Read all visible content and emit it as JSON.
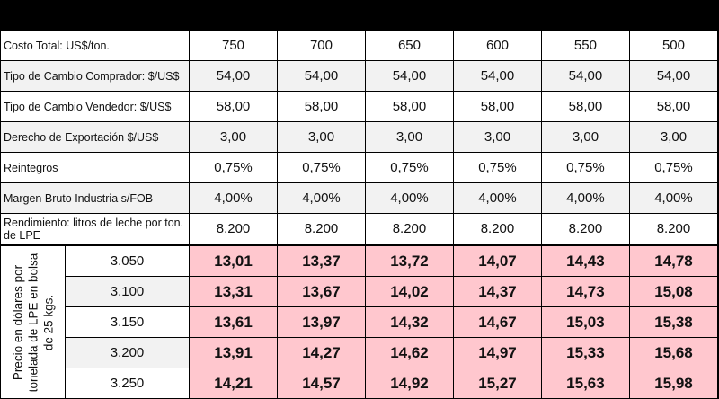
{
  "columns": [
    "750",
    "700",
    "650",
    "600",
    "550",
    "500"
  ],
  "params": [
    {
      "label": "Costo Total: US$/ton.",
      "values": [
        "750",
        "700",
        "650",
        "600",
        "550",
        "500"
      ]
    },
    {
      "label": "Tipo de Cambio Comprador: $/US$",
      "values": [
        "54,00",
        "54,00",
        "54,00",
        "54,00",
        "54,00",
        "54,00"
      ]
    },
    {
      "label": "Tipo de Cambio Vendedor: $/US$",
      "values": [
        "58,00",
        "58,00",
        "58,00",
        "58,00",
        "58,00",
        "58,00"
      ]
    },
    {
      "label": "Derecho de Exportación $/US$",
      "values": [
        "3,00",
        "3,00",
        "3,00",
        "3,00",
        "3,00",
        "3,00"
      ]
    },
    {
      "label": "Reintegros",
      "values": [
        "0,75%",
        "0,75%",
        "0,75%",
        "0,75%",
        "0,75%",
        "0,75%"
      ]
    },
    {
      "label": "Margen Bruto Industria s/FOB",
      "values": [
        "4,00%",
        "4,00%",
        "4,00%",
        "4,00%",
        "4,00%",
        "4,00%"
      ]
    },
    {
      "label": "Rendimiento: litros de leche por ton. de LPE",
      "values": [
        "8.200",
        "8.200",
        "8.200",
        "8.200",
        "8.200",
        "8.200"
      ]
    }
  ],
  "price_axis_label": "Precio en dólares por tonelada de LPE en bolsa de 25 kgs.",
  "price_rows": [
    {
      "price": "3.050",
      "values": [
        "13,01",
        "13,37",
        "13,72",
        "14,07",
        "14,43",
        "14,78"
      ]
    },
    {
      "price": "3.100",
      "values": [
        "13,31",
        "13,67",
        "14,02",
        "14,37",
        "14,73",
        "15,08"
      ]
    },
    {
      "price": "3.150",
      "values": [
        "13,61",
        "13,97",
        "14,32",
        "14,67",
        "15,03",
        "15,38"
      ]
    },
    {
      "price": "3.200",
      "values": [
        "13,91",
        "14,27",
        "14,62",
        "14,97",
        "15,33",
        "15,68"
      ]
    },
    {
      "price": "3.250",
      "values": [
        "14,21",
        "14,57",
        "14,92",
        "15,27",
        "15,63",
        "15,98"
      ]
    }
  ],
  "colors": {
    "highlight": "#ffc7ce",
    "alt_row": "#f2f2f2",
    "title_bar": "#000000"
  }
}
